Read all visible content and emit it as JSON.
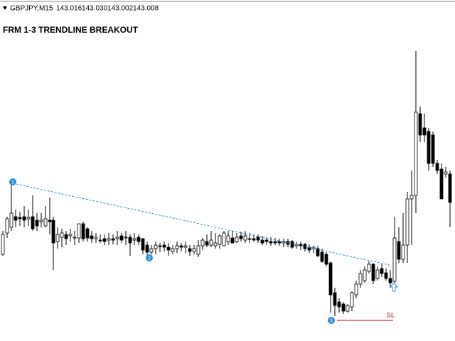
{
  "header": {
    "symbol": "GBPJPY,M15",
    "prices": [
      "143.016",
      "143.030",
      "143.002",
      "143.008"
    ]
  },
  "title": "FRM 1-3 TRENDLINE BREAKOUT",
  "points": [
    {
      "label": "1"
    },
    {
      "label": "2"
    },
    {
      "label": "3"
    }
  ],
  "stop_loss": {
    "label": "SL"
  }
}
